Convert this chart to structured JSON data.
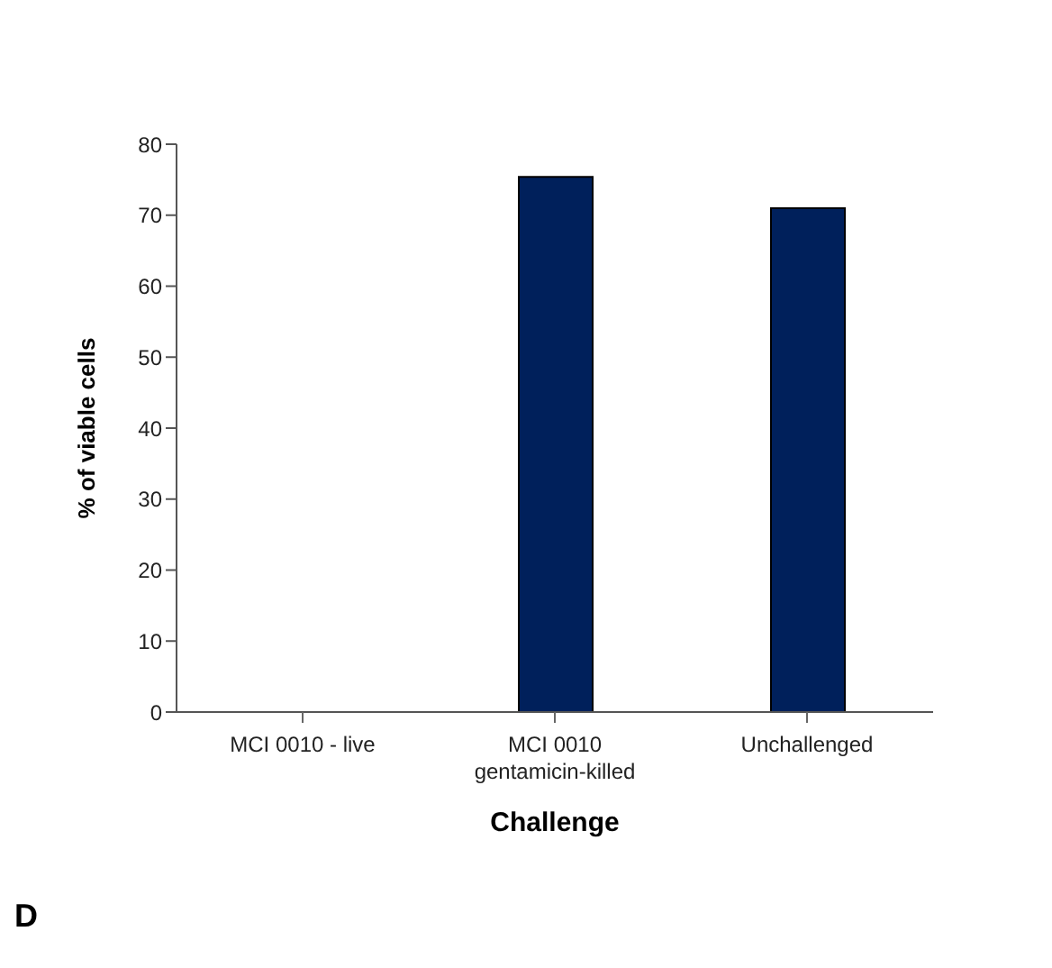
{
  "chart_data": {
    "type": "bar",
    "xlabel": "Challenge",
    "ylabel": "% of viable cells",
    "categories": [
      "MCI 0010 - live",
      "MCI 0010\ngentamicin-killed",
      "Unchallenged"
    ],
    "values": [
      0,
      75.4,
      71.0
    ],
    "color": "#00205b",
    "ylim": [
      0,
      80
    ],
    "yticks": [
      0,
      10,
      20,
      30,
      40,
      50,
      60,
      70,
      80
    ],
    "annotations": [
      "D"
    ]
  }
}
